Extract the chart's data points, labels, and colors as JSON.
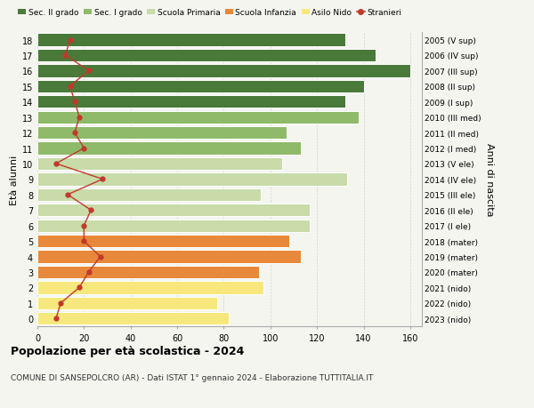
{
  "ages": [
    0,
    1,
    2,
    3,
    4,
    5,
    6,
    7,
    8,
    9,
    10,
    11,
    12,
    13,
    14,
    15,
    16,
    17,
    18
  ],
  "anni_nascita": [
    "2023 (nido)",
    "2022 (nido)",
    "2021 (nido)",
    "2020 (mater)",
    "2019 (mater)",
    "2018 (mater)",
    "2017 (I ele)",
    "2016 (II ele)",
    "2015 (III ele)",
    "2014 (IV ele)",
    "2013 (V ele)",
    "2012 (I med)",
    "2011 (II med)",
    "2010 (III med)",
    "2009 (I sup)",
    "2008 (II sup)",
    "2007 (III sup)",
    "2006 (IV sup)",
    "2005 (V sup)"
  ],
  "bar_values": [
    82,
    77,
    97,
    95,
    113,
    108,
    117,
    117,
    96,
    133,
    105,
    113,
    107,
    138,
    132,
    140,
    160,
    145,
    132
  ],
  "bar_colors": [
    "#f7e87e",
    "#f7e87e",
    "#f7e87e",
    "#e8883a",
    "#e8883a",
    "#e8883a",
    "#c8dba8",
    "#c8dba8",
    "#c8dba8",
    "#c8dba8",
    "#c8dba8",
    "#8fba6a",
    "#8fba6a",
    "#8fba6a",
    "#4a7a3a",
    "#4a7a3a",
    "#4a7a3a",
    "#4a7a3a",
    "#4a7a3a"
  ],
  "stranieri_values": [
    8,
    10,
    18,
    22,
    27,
    20,
    20,
    23,
    13,
    28,
    8,
    20,
    16,
    18,
    16,
    14,
    22,
    12,
    14
  ],
  "legend_labels": [
    "Sec. II grado",
    "Sec. I grado",
    "Scuola Primaria",
    "Scuola Infanzia",
    "Asilo Nido",
    "Stranieri"
  ],
  "legend_colors": [
    "#4a7a3a",
    "#8fba6a",
    "#c8dba8",
    "#e8883a",
    "#f7e87e",
    "#c0392b"
  ],
  "ylabel_left": "Età alunni",
  "ylabel_right": "Anni di nascita",
  "title": "Popolazione per età scolastica - 2024",
  "subtitle": "COMUNE DI SANSEPOLCRO (AR) - Dati ISTAT 1° gennaio 2024 - Elaborazione TUTTITALIA.IT",
  "xlim": [
    0,
    165
  ],
  "background_color": "#f5f5f0"
}
